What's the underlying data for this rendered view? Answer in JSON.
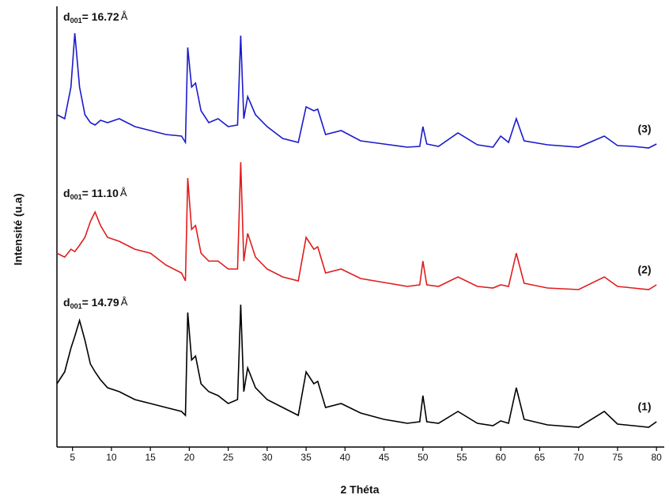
{
  "chart_data": {
    "type": "line",
    "x_label": "2 Théta",
    "y_label": "Intensité (u.a)",
    "xlim": [
      3,
      81
    ],
    "ylim": [
      0,
      555
    ],
    "xticks": [
      5,
      10,
      15,
      20,
      25,
      30,
      35,
      40,
      45,
      50,
      55,
      60,
      65,
      70,
      75,
      80
    ],
    "x": [
      3,
      4,
      4.8,
      5.3,
      5.9,
      6.6,
      7.3,
      7.9,
      8.6,
      9.5,
      11,
      13,
      15,
      17,
      19,
      19.5,
      19.8,
      20.3,
      20.8,
      21.5,
      22.5,
      23.7,
      25,
      26.2,
      26.6,
      27,
      27.5,
      28.5,
      30,
      32,
      34,
      35,
      36,
      36.5,
      37.5,
      39.5,
      42,
      45,
      48,
      49.6,
      50,
      50.5,
      52,
      54.5,
      57,
      59,
      60,
      61,
      62,
      63,
      66,
      70,
      73.3,
      75,
      77,
      79,
      80
    ],
    "series": [
      {
        "name": "(3)",
        "color": "#1a1acc",
        "values": [
          420,
          415,
          455,
          523,
          455,
          420,
          410,
          407,
          413,
          410,
          415,
          405,
          400,
          395,
          393,
          385,
          505,
          455,
          460,
          425,
          410,
          415,
          405,
          407,
          520,
          415,
          443,
          420,
          405,
          390,
          385,
          430,
          425,
          427,
          395,
          400,
          387,
          383,
          379,
          380,
          405,
          383,
          380,
          397,
          382,
          379,
          393,
          385,
          415,
          387,
          382,
          379,
          393,
          381,
          380,
          378,
          383
        ]
      },
      {
        "name": "(2)",
        "color": "#e01c1c",
        "values": [
          245,
          240,
          250,
          247,
          255,
          265,
          285,
          297,
          280,
          265,
          260,
          250,
          245,
          230,
          220,
          210,
          340,
          275,
          280,
          245,
          235,
          235,
          225,
          225,
          360,
          235,
          270,
          240,
          225,
          215,
          210,
          265,
          250,
          253,
          220,
          225,
          213,
          208,
          203,
          205,
          235,
          205,
          203,
          215,
          203,
          201,
          205,
          203,
          245,
          207,
          201,
          199,
          215,
          203,
          201,
          199,
          205
        ]
      },
      {
        "name": "(1)",
        "color": "#000000",
        "values": [
          80,
          95,
          125,
          140,
          160,
          135,
          105,
          95,
          85,
          75,
          70,
          60,
          55,
          50,
          45,
          40,
          170,
          110,
          115,
          80,
          70,
          65,
          55,
          60,
          180,
          70,
          100,
          75,
          60,
          50,
          40,
          95,
          80,
          83,
          50,
          55,
          43,
          35,
          30,
          32,
          65,
          32,
          30,
          45,
          30,
          27,
          33,
          30,
          75,
          35,
          28,
          25,
          45,
          29,
          27,
          25,
          32
        ]
      }
    ],
    "annotations": [
      {
        "text": "d",
        "sub": "001",
        "value": "= 16.72",
        "unit": "Å"
      },
      {
        "text": "d",
        "sub": "001",
        "value": "= 11.10",
        "unit": "Å"
      },
      {
        "text": "d",
        "sub": "001",
        "value": "= 14.79",
        "unit": "Å"
      }
    ]
  }
}
